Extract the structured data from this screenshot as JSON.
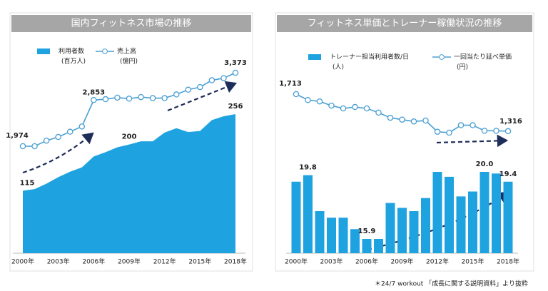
{
  "chart_data": [
    {
      "type": "combo",
      "title": "国内フィットネス市場の推移",
      "categories": [
        "2000年",
        null,
        null,
        "2003年",
        null,
        null,
        "2006年",
        null,
        null,
        "2009年",
        null,
        null,
        "2012年",
        null,
        null,
        "2015年",
        null,
        null,
        "2018年"
      ],
      "series": [
        {
          "name": "利用者数",
          "unit": "(百万人)",
          "type": "area",
          "color": "#1ea3e0",
          "values": [
            115,
            118,
            128,
            140,
            150,
            158,
            178,
            186,
            195,
            200,
            206,
            206,
            222,
            230,
            223,
            225,
            245,
            252,
            256
          ],
          "value_labels": [
            "115",
            null,
            null,
            null,
            null,
            null,
            null,
            null,
            null,
            "200",
            null,
            null,
            null,
            null,
            null,
            null,
            null,
            null,
            "256"
          ]
        },
        {
          "name": "売上高",
          "unit": "(億円)",
          "type": "line",
          "color": "#4a9fd3",
          "values": [
            1974,
            1974,
            2080,
            2150,
            2250,
            2350,
            2853,
            2870,
            2900,
            2880,
            2910,
            2890,
            2890,
            2960,
            3050,
            3100,
            3230,
            3270,
            3373
          ],
          "value_labels": [
            "1,974",
            null,
            null,
            null,
            null,
            null,
            "2,853",
            null,
            null,
            null,
            null,
            null,
            null,
            null,
            null,
            null,
            null,
            null,
            "3,373"
          ]
        }
      ]
    },
    {
      "type": "combo",
      "title": "フィットネス単価とトレーナー稼働状況の推移",
      "categories": [
        "2000年",
        null,
        null,
        "2003年",
        null,
        null,
        "2006年",
        null,
        null,
        "2009年",
        null,
        null,
        "2012年",
        null,
        null,
        "2015年",
        null,
        null,
        "2018年"
      ],
      "series": [
        {
          "name": "トレーナー担当利用者数/日",
          "unit": "(人)",
          "type": "bar",
          "color": "#1ea3e0",
          "values": [
            19.4,
            19.8,
            17.6,
            17.2,
            17.2,
            16.5,
            15.9,
            15.9,
            18.1,
            17.8,
            17.6,
            18.4,
            20.0,
            19.7,
            18.5,
            18.8,
            20.0,
            19.9,
            19.4
          ],
          "value_labels": [
            null,
            "19.8",
            null,
            null,
            null,
            null,
            "15.9",
            null,
            null,
            null,
            null,
            null,
            null,
            null,
            null,
            null,
            "20.0",
            null,
            "19.4"
          ]
        },
        {
          "name": "一回当たり延べ単価",
          "unit": "(円)",
          "type": "line",
          "color": "#4a9fd3",
          "values": [
            1713,
            1650,
            1635,
            1590,
            1560,
            1575,
            1560,
            1515,
            1460,
            1440,
            1420,
            1430,
            1310,
            1300,
            1380,
            1380,
            1320,
            1320,
            1316
          ],
          "value_labels": [
            "1,713",
            null,
            null,
            null,
            null,
            null,
            null,
            null,
            null,
            null,
            null,
            null,
            null,
            null,
            null,
            null,
            null,
            null,
            "1,316"
          ]
        }
      ]
    }
  ],
  "footnote": "＊24/7 workout 「成長に関する説明資料」より抜粋"
}
